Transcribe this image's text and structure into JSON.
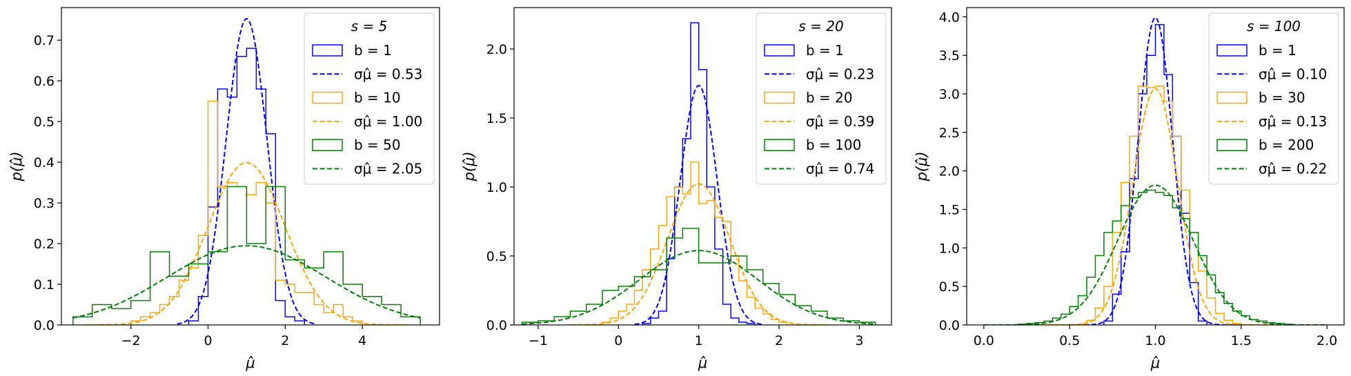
{
  "chart_data": [
    {
      "type": "histogram",
      "xlabel": "μ̂",
      "ylabel": "p(μ̂)",
      "xlim": [
        -3.8,
        6.0
      ],
      "ylim": [
        0,
        0.78
      ],
      "xticks": [
        -2,
        0,
        2,
        4
      ],
      "xtick_labels": [
        "−2",
        "0",
        "2",
        "4"
      ],
      "yticks": [
        0.0,
        0.1,
        0.2,
        0.3,
        0.4,
        0.5,
        0.6,
        0.7
      ],
      "ytick_labels": [
        "0.0",
        "0.1",
        "0.2",
        "0.3",
        "0.4",
        "0.5",
        "0.6",
        "0.7"
      ],
      "legend_title": "s = 5",
      "legend_position": "upper right",
      "series": [
        {
          "name": "b = 1",
          "kind": "hist",
          "color": "#0000ff",
          "edges": [
            -0.5,
            -0.25,
            0,
            0.25,
            0.5,
            0.75,
            1,
            1.25,
            1.5,
            1.75,
            2,
            2.25,
            2.5
          ],
          "values": [
            0.01,
            0.07,
            0.29,
            0.58,
            0.56,
            0.66,
            0.68,
            0.58,
            0.47,
            0.06,
            0.02,
            0.01
          ]
        },
        {
          "name": "σμ̂ = 0.53",
          "kind": "gauss",
          "color": "#0000ff",
          "mu": 1.0,
          "sigma": 0.53,
          "x_range": [
            -0.8,
            2.8
          ]
        },
        {
          "name": "b = 10",
          "kind": "hist",
          "color": "#ffa500",
          "edges": [
            -2.0,
            -1.75,
            -1.5,
            -1.25,
            -1.0,
            -0.75,
            -0.5,
            -0.25,
            0,
            0.25,
            0.5,
            0.75,
            1,
            1.25,
            1.5,
            1.75,
            2,
            2.25,
            2.5,
            2.75,
            3,
            3.25,
            3.5,
            3.75,
            4
          ],
          "values": [
            0.01,
            0.02,
            0.03,
            0.05,
            0.07,
            0.11,
            0.14,
            0.22,
            0.55,
            0.34,
            0.35,
            0.34,
            0.32,
            0.35,
            0.3,
            0.11,
            0.1,
            0.08,
            0.08,
            0.05,
            0.03,
            0.05,
            0.02,
            0.01
          ]
        },
        {
          "name": "σμ̂ = 1.00",
          "kind": "gauss",
          "color": "#ffa500",
          "mu": 1.0,
          "sigma": 1.0,
          "x_range": [
            -3.2,
            5.2
          ]
        },
        {
          "name": "b = 50",
          "kind": "hist",
          "color": "#008000",
          "edges": [
            -3.5,
            -3.0,
            -2.5,
            -2.0,
            -1.5,
            -1.0,
            -0.5,
            0,
            0.5,
            1.0,
            1.5,
            2.0,
            2.5,
            3.0,
            3.5,
            4.0,
            4.5,
            5.0,
            5.5
          ],
          "values": [
            0.02,
            0.05,
            0.04,
            0.06,
            0.18,
            0.12,
            0.15,
            0.18,
            0.34,
            0.2,
            0.34,
            0.16,
            0.14,
            0.18,
            0.1,
            0.07,
            0.05,
            0.02
          ]
        },
        {
          "name": "σμ̂ = 2.05",
          "kind": "gauss",
          "color": "#008000",
          "mu": 1.0,
          "sigma": 2.05,
          "x_range": [
            -3.5,
            5.5
          ]
        }
      ]
    },
    {
      "type": "histogram",
      "xlabel": "μ̂",
      "ylabel": "p(μ̂)",
      "xlim": [
        -1.3,
        3.4
      ],
      "ylim": [
        0,
        2.3
      ],
      "xticks": [
        -1,
        0,
        1,
        2,
        3
      ],
      "xtick_labels": [
        "−1",
        "0",
        "1",
        "2",
        "3"
      ],
      "yticks": [
        0.0,
        0.5,
        1.0,
        1.5,
        2.0
      ],
      "ytick_labels": [
        "0.0",
        "0.5",
        "1.0",
        "1.5",
        "2.0"
      ],
      "legend_title": "s = 20",
      "legend_position": "upper right",
      "series": [
        {
          "name": "b = 1",
          "kind": "hist",
          "color": "#0000ff",
          "edges": [
            0.3,
            0.4,
            0.5,
            0.6,
            0.7,
            0.8,
            0.9,
            1.0,
            1.1,
            1.2,
            1.3,
            1.4,
            1.5,
            1.6,
            1.7
          ],
          "values": [
            0.01,
            0.05,
            0.1,
            0.48,
            1.0,
            1.35,
            2.19,
            1.85,
            1.0,
            0.55,
            0.15,
            0.05,
            0.02,
            0.01
          ]
        },
        {
          "name": "σμ̂ = 0.23",
          "kind": "gauss",
          "color": "#0000ff",
          "mu": 1.0,
          "sigma": 0.23,
          "x_range": [
            0.2,
            1.8
          ]
        },
        {
          "name": "b = 20",
          "kind": "hist",
          "color": "#ffa500",
          "edges": [
            -0.2,
            -0.1,
            0,
            0.1,
            0.2,
            0.3,
            0.4,
            0.5,
            0.6,
            0.7,
            0.8,
            0.9,
            1.0,
            1.1,
            1.2,
            1.3,
            1.4,
            1.5,
            1.6,
            1.7,
            1.8,
            1.9,
            2.0,
            2.1
          ],
          "values": [
            0.02,
            0.05,
            0.1,
            0.15,
            0.25,
            0.4,
            0.55,
            0.72,
            0.93,
            1.0,
            0.95,
            1.18,
            0.88,
            0.9,
            0.78,
            0.75,
            0.5,
            0.32,
            0.2,
            0.12,
            0.08,
            0.04,
            0.02
          ]
        },
        {
          "name": "σμ̂ = 0.39",
          "kind": "gauss",
          "color": "#ffa500",
          "mu": 1.0,
          "sigma": 0.39,
          "x_range": [
            -0.6,
            2.6
          ]
        },
        {
          "name": "b = 100",
          "kind": "hist",
          "color": "#008000",
          "edges": [
            -1.2,
            -1.0,
            -0.8,
            -0.6,
            -0.4,
            -0.2,
            0,
            0.2,
            0.4,
            0.6,
            0.8,
            1.0,
            1.2,
            1.4,
            1.6,
            1.8,
            2.0,
            2.2,
            2.4,
            2.6,
            2.8,
            3.0,
            3.2
          ],
          "values": [
            0.02,
            0.03,
            0.06,
            0.1,
            0.15,
            0.25,
            0.28,
            0.35,
            0.4,
            0.63,
            0.7,
            0.45,
            0.45,
            0.5,
            0.4,
            0.3,
            0.22,
            0.14,
            0.1,
            0.05,
            0.03,
            0.02
          ]
        },
        {
          "name": "σμ̂ = 0.74",
          "kind": "gauss",
          "color": "#008000",
          "mu": 1.0,
          "sigma": 0.74,
          "x_range": [
            -1.2,
            3.2
          ]
        }
      ]
    },
    {
      "type": "histogram",
      "xlabel": "μ̂",
      "ylabel": "p(μ̂)",
      "xlim": [
        -0.1,
        2.1
      ],
      "ylim": [
        0,
        4.12
      ],
      "xticks": [
        0.0,
        0.5,
        1.0,
        1.5,
        2.0
      ],
      "xtick_labels": [
        "0.0",
        "0.5",
        "1.0",
        "1.5",
        "2.0"
      ],
      "yticks": [
        0.0,
        0.5,
        1.0,
        1.5,
        2.0,
        2.5,
        3.0,
        3.5,
        4.0
      ],
      "ytick_labels": [
        "0.0",
        "0.5",
        "1.0",
        "1.5",
        "2.0",
        "2.5",
        "3.0",
        "3.5",
        "4.0"
      ],
      "legend_title": "s = 100",
      "legend_position": "upper right",
      "series": [
        {
          "name": "b = 1",
          "kind": "hist",
          "color": "#0000ff",
          "edges": [
            0.7,
            0.75,
            0.8,
            0.85,
            0.9,
            0.95,
            1.0,
            1.05,
            1.1,
            1.15,
            1.2,
            1.25,
            1.3
          ],
          "values": [
            0.05,
            0.4,
            0.95,
            1.9,
            3.0,
            3.5,
            3.9,
            3.25,
            2.45,
            1.45,
            0.55,
            0.05
          ]
        },
        {
          "name": "σμ̂ = 0.10",
          "kind": "gauss",
          "color": "#0000ff",
          "mu": 1.0,
          "sigma": 0.1,
          "x_range": [
            0.5,
            1.5
          ]
        },
        {
          "name": "b = 30",
          "kind": "hist",
          "color": "#ffa500",
          "edges": [
            0.55,
            0.6,
            0.65,
            0.7,
            0.75,
            0.8,
            0.85,
            0.9,
            0.95,
            1.0,
            1.05,
            1.1,
            1.15,
            1.2,
            1.25,
            1.3,
            1.35,
            1.4,
            1.45,
            1.5
          ],
          "values": [
            0.01,
            0.06,
            0.22,
            0.5,
            1.2,
            1.85,
            2.45,
            3.1,
            3.08,
            3.1,
            2.9,
            2.45,
            1.75,
            1.2,
            0.7,
            0.35,
            0.15,
            0.06,
            0.02
          ]
        },
        {
          "name": "σμ̂ = 0.13",
          "kind": "gauss",
          "color": "#ffa500",
          "mu": 1.0,
          "sigma": 0.13,
          "x_range": [
            0.2,
            1.8
          ]
        },
        {
          "name": "b = 200",
          "kind": "hist",
          "color": "#008000",
          "edges": [
            0.2,
            0.25,
            0.3,
            0.35,
            0.4,
            0.45,
            0.5,
            0.55,
            0.6,
            0.65,
            0.7,
            0.75,
            0.8,
            0.85,
            0.9,
            0.95,
            1.0,
            1.05,
            1.1,
            1.15,
            1.2,
            1.25,
            1.3,
            1.35,
            1.4,
            1.45,
            1.5,
            1.55,
            1.6,
            1.65,
            1.7,
            1.75,
            1.8
          ],
          "values": [
            0.01,
            0.02,
            0.03,
            0.05,
            0.09,
            0.14,
            0.24,
            0.38,
            0.62,
            0.9,
            1.2,
            1.35,
            1.55,
            1.65,
            1.72,
            1.75,
            1.72,
            1.68,
            1.52,
            1.38,
            1.2,
            0.9,
            0.65,
            0.42,
            0.28,
            0.18,
            0.12,
            0.07,
            0.05,
            0.03,
            0.02,
            0.01
          ]
        },
        {
          "name": "σμ̂ = 0.22",
          "kind": "gauss",
          "color": "#008000",
          "mu": 1.0,
          "sigma": 0.22,
          "x_range": [
            0.0,
            2.0
          ]
        }
      ]
    }
  ]
}
